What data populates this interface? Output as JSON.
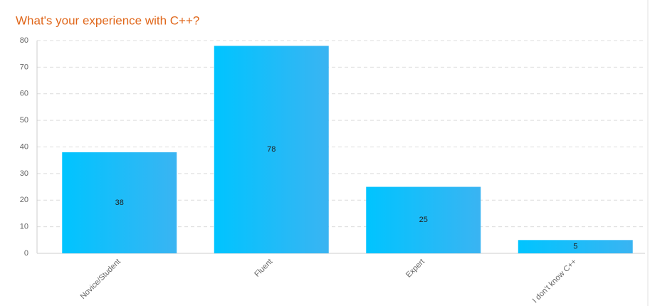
{
  "chart_data": {
    "type": "bar",
    "title": "What's your experience with C++?",
    "categories": [
      "Novice/Student",
      "Fluent",
      "Expert",
      "I don't know C++"
    ],
    "values": [
      38,
      78,
      25,
      5
    ],
    "gradient": [
      "#00c4ff",
      "#3ab4f2"
    ],
    "ylim": [
      0,
      80
    ],
    "yticks": [
      0,
      10,
      20,
      30,
      40,
      50,
      60,
      70,
      80
    ],
    "grid": true
  }
}
